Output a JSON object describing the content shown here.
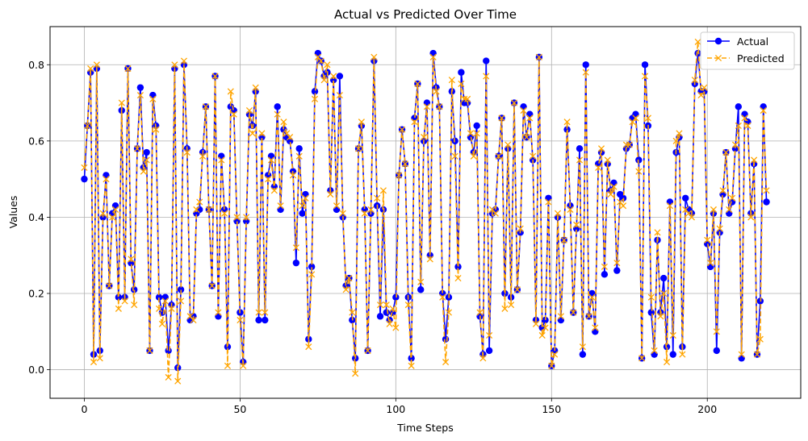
{
  "chart_data": {
    "type": "line",
    "title": "Actual vs Predicted Over Time",
    "xlabel": "Time Steps",
    "ylabel": "Values",
    "xlim": [
      -11,
      230
    ],
    "ylim": [
      -0.075,
      0.9
    ],
    "xticks": [
      0,
      50,
      100,
      150,
      200
    ],
    "yticks": [
      0.0,
      0.2,
      0.4,
      0.6,
      0.8
    ],
    "ytick_labels": [
      "0.0",
      "0.2",
      "0.4",
      "0.6",
      "0.8"
    ],
    "grid": true,
    "legend_position": "top-right",
    "x": "0..219 (integer time steps)",
    "series": [
      {
        "name": "Actual",
        "color": "#0000ff",
        "marker": "circle",
        "line_style": "solid",
        "values": [
          0.5,
          0.64,
          0.78,
          0.04,
          0.79,
          0.05,
          0.4,
          0.51,
          0.22,
          0.41,
          0.43,
          0.19,
          0.68,
          0.19,
          0.79,
          0.28,
          0.21,
          0.58,
          0.74,
          0.53,
          0.57,
          0.05,
          0.72,
          0.64,
          0.19,
          0.15,
          0.19,
          0.05,
          0.17,
          0.79,
          0.005,
          0.21,
          0.8,
          0.58,
          0.13,
          0.14,
          0.41,
          0.42,
          0.57,
          0.69,
          0.42,
          0.22,
          0.77,
          0.14,
          0.56,
          0.42,
          0.06,
          0.69,
          0.68,
          0.39,
          0.15,
          0.02,
          0.39,
          0.67,
          0.64,
          0.73,
          0.13,
          0.61,
          0.13,
          0.51,
          0.56,
          0.48,
          0.69,
          0.42,
          0.63,
          0.61,
          0.6,
          0.52,
          0.28,
          0.58,
          0.41,
          0.46,
          0.08,
          0.27,
          0.73,
          0.83,
          0.81,
          0.77,
          0.78,
          0.47,
          0.76,
          0.42,
          0.77,
          0.4,
          0.22,
          0.24,
          0.13,
          0.03,
          0.58,
          0.64,
          0.42,
          0.05,
          0.41,
          0.81,
          0.43,
          0.14,
          0.42,
          0.15,
          0.13,
          0.15,
          0.19,
          0.51,
          0.63,
          0.54,
          0.19,
          0.03,
          0.66,
          0.75,
          0.21,
          0.6,
          0.7,
          0.3,
          0.83,
          0.74,
          0.69,
          0.2,
          0.08,
          0.19,
          0.73,
          0.6,
          0.27,
          0.78,
          0.7,
          0.7,
          0.61,
          0.57,
          0.64,
          0.14,
          0.04,
          0.81,
          0.05,
          0.41,
          0.42,
          0.56,
          0.66,
          0.2,
          0.58,
          0.19,
          0.7,
          0.21,
          0.36,
          0.69,
          0.61,
          0.67,
          0.55,
          0.13,
          0.82,
          0.11,
          0.13,
          0.45,
          0.01,
          0.05,
          0.4,
          0.13,
          0.34,
          0.63,
          0.43,
          0.15,
          0.37,
          0.58,
          0.04,
          0.8,
          0.14,
          0.2,
          0.1,
          0.54,
          0.57,
          0.25,
          0.54,
          0.47,
          0.49,
          0.26,
          0.46,
          0.45,
          0.58,
          0.59,
          0.66,
          0.67,
          0.55,
          0.03,
          0.8,
          0.64,
          0.15,
          0.04,
          0.34,
          0.15,
          0.24,
          0.06,
          0.44,
          0.04,
          0.57,
          0.61,
          0.06,
          0.45,
          0.42,
          0.41,
          0.75,
          0.83,
          0.73,
          0.73,
          0.33,
          0.27,
          0.41,
          0.05,
          0.36,
          0.46,
          0.57,
          0.41,
          0.44,
          0.58,
          0.69,
          0.03,
          0.67,
          0.65,
          0.41,
          0.54,
          0.04,
          0.18,
          0.69,
          0.44
        ]
      },
      {
        "name": "Predicted",
        "color": "#ffa500",
        "marker": "x",
        "line_style": "dashed",
        "values": [
          0.53,
          0.64,
          0.79,
          0.02,
          0.8,
          0.03,
          0.41,
          0.5,
          0.22,
          0.4,
          0.42,
          0.16,
          0.7,
          0.18,
          0.79,
          0.29,
          0.17,
          0.58,
          0.72,
          0.52,
          0.55,
          0.05,
          0.71,
          0.63,
          0.16,
          0.12,
          0.18,
          -0.02,
          0.16,
          0.8,
          -0.03,
          0.18,
          0.81,
          0.57,
          0.14,
          0.13,
          0.42,
          0.44,
          0.56,
          0.69,
          0.42,
          0.22,
          0.77,
          0.15,
          0.55,
          0.41,
          0.01,
          0.73,
          0.67,
          0.4,
          0.13,
          0.01,
          0.4,
          0.68,
          0.62,
          0.74,
          0.15,
          0.62,
          0.15,
          0.5,
          0.55,
          0.47,
          0.67,
          0.43,
          0.65,
          0.62,
          0.61,
          0.51,
          0.32,
          0.56,
          0.43,
          0.45,
          0.06,
          0.25,
          0.71,
          0.82,
          0.81,
          0.76,
          0.8,
          0.46,
          0.77,
          0.43,
          0.72,
          0.41,
          0.21,
          0.24,
          0.15,
          -0.01,
          0.58,
          0.65,
          0.41,
          0.05,
          0.42,
          0.82,
          0.45,
          0.17,
          0.47,
          0.17,
          0.12,
          0.16,
          0.11,
          0.51,
          0.63,
          0.54,
          0.17,
          0.01,
          0.65,
          0.75,
          0.23,
          0.61,
          0.69,
          0.29,
          0.82,
          0.73,
          0.69,
          0.19,
          0.02,
          0.15,
          0.76,
          0.56,
          0.24,
          0.75,
          0.71,
          0.71,
          0.62,
          0.56,
          0.62,
          0.15,
          0.03,
          0.77,
          0.09,
          0.42,
          0.41,
          0.56,
          0.66,
          0.16,
          0.59,
          0.17,
          0.7,
          0.21,
          0.37,
          0.68,
          0.61,
          0.66,
          0.56,
          0.12,
          0.82,
          0.09,
          0.11,
          0.44,
          0.01,
          0.04,
          0.41,
          0.14,
          0.34,
          0.65,
          0.42,
          0.15,
          0.38,
          0.55,
          0.06,
          0.78,
          0.14,
          0.19,
          0.11,
          0.53,
          0.58,
          0.27,
          0.55,
          0.46,
          0.48,
          0.28,
          0.44,
          0.43,
          0.59,
          0.59,
          0.65,
          0.66,
          0.52,
          0.03,
          0.77,
          0.66,
          0.19,
          0.05,
          0.36,
          0.14,
          0.2,
          0.02,
          0.43,
          0.09,
          0.6,
          0.62,
          0.04,
          0.42,
          0.41,
          0.4,
          0.76,
          0.86,
          0.72,
          0.74,
          0.34,
          0.28,
          0.42,
          0.1,
          0.37,
          0.47,
          0.57,
          0.42,
          0.45,
          0.59,
          0.64,
          0.04,
          0.66,
          0.64,
          0.4,
          0.55,
          0.04,
          0.08,
          0.68,
          0.47
        ]
      }
    ]
  }
}
